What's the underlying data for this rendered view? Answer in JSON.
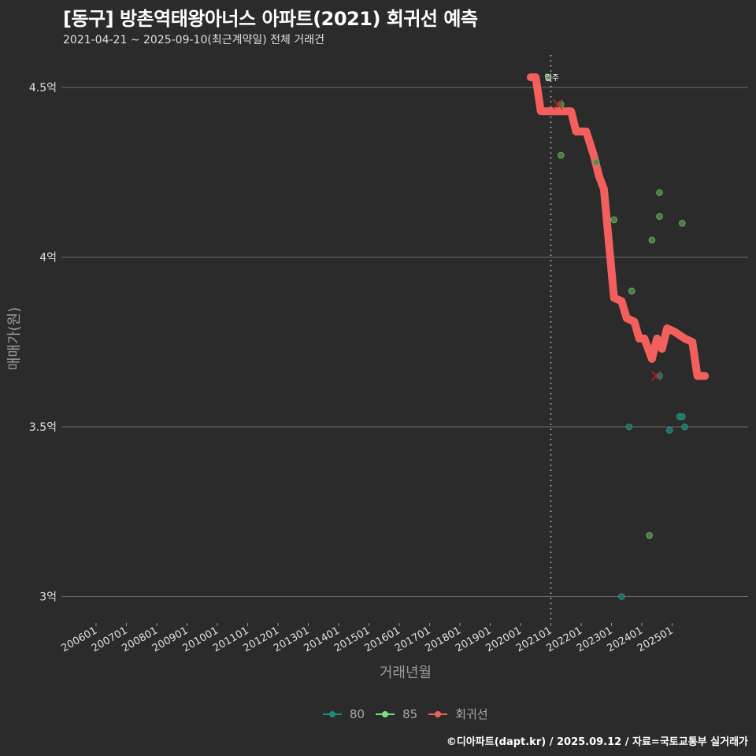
{
  "header": {
    "title": "[동구] 방촌역태왕아너스 아파트(2021) 회귀선 예측",
    "subtitle": "2021-04-21 ~ 2025-09-10(최근계약일) 전체 거래건"
  },
  "footer": {
    "credit": "©디아파트(dapt.kr) / 2025.09.12 / 자료=국토교통부 실거래가"
  },
  "colors": {
    "background": "#2b2b2b",
    "grid": "#6b6b6b",
    "series_80": "#1f7a6e",
    "series_85": "#6fbf5a",
    "regression": "#f25f5c",
    "marker_x": "#cc2222",
    "annotation_line": "#cccccc"
  },
  "legend": {
    "items": [
      {
        "label": "80",
        "color": "#1f8a7e"
      },
      {
        "label": "85",
        "color": "#7be07b"
      },
      {
        "label": "회귀선",
        "color": "#f25f5c"
      }
    ]
  },
  "chart_data": {
    "type": "scatter",
    "title": "[동구] 방촌역태왕아너스 아파트(2021) 회귀선 예측",
    "subtitle": "2021-04-21 ~ 2025-09-10(최근계약일) 전체 거래건",
    "xlabel": "거래년월",
    "ylabel": "매매가(원)",
    "x_ticks": [
      "200601",
      "200701",
      "200801",
      "200901",
      "201001",
      "201101",
      "201201",
      "201301",
      "201401",
      "201501",
      "201601",
      "201701",
      "201801",
      "201901",
      "202001",
      "202101",
      "202201",
      "202301",
      "202401",
      "202501"
    ],
    "y_ticks": [
      {
        "value": 3.0,
        "label": "3억"
      },
      {
        "value": 3.5,
        "label": "3.5억"
      },
      {
        "value": 4.0,
        "label": "4억"
      },
      {
        "value": 4.5,
        "label": "4.5억"
      }
    ],
    "ylim": [
      2.92,
      4.6
    ],
    "xlim": [
      "200510",
      "202612"
    ],
    "grid": "horizontal",
    "legend_position": "bottom",
    "annotation": {
      "label": "입주",
      "x": "202101",
      "style": "dotted-vertical"
    },
    "series": [
      {
        "name": "80",
        "type": "scatter",
        "points": [
          {
            "x": "2023-05",
            "y": 3.0
          },
          {
            "x": "2023-08",
            "y": 3.5
          },
          {
            "x": "2024-08",
            "y": 3.65
          },
          {
            "x": "2024-12",
            "y": 3.49
          },
          {
            "x": "2025-04",
            "y": 3.53
          },
          {
            "x": "2025-05",
            "y": 3.53
          },
          {
            "x": "2025-06",
            "y": 3.5
          }
        ]
      },
      {
        "name": "85",
        "type": "scatter",
        "points": [
          {
            "x": "2020-12",
            "y": 4.53
          },
          {
            "x": "2021-05",
            "y": 4.45
          },
          {
            "x": "2021-05",
            "y": 4.3
          },
          {
            "x": "2022-07",
            "y": 4.28
          },
          {
            "x": "2023-02",
            "y": 4.11
          },
          {
            "x": "2023-09",
            "y": 3.9
          },
          {
            "x": "2024-04",
            "y": 3.18
          },
          {
            "x": "2024-05",
            "y": 4.05
          },
          {
            "x": "2024-08",
            "y": 4.19
          },
          {
            "x": "2024-08",
            "y": 4.12
          },
          {
            "x": "2025-05",
            "y": 4.1
          }
        ]
      },
      {
        "name": "회귀선",
        "type": "line",
        "points": [
          {
            "x": "2020-05",
            "y": 4.53
          },
          {
            "x": "2020-07",
            "y": 4.53
          },
          {
            "x": "2020-09",
            "y": 4.43
          },
          {
            "x": "2021-09",
            "y": 4.43
          },
          {
            "x": "2021-11",
            "y": 4.37
          },
          {
            "x": "2022-03",
            "y": 4.37
          },
          {
            "x": "2022-06",
            "y": 4.3
          },
          {
            "x": "2022-08",
            "y": 4.24
          },
          {
            "x": "2022-10",
            "y": 4.2
          },
          {
            "x": "2023-02",
            "y": 3.88
          },
          {
            "x": "2023-05",
            "y": 3.87
          },
          {
            "x": "2023-07",
            "y": 3.82
          },
          {
            "x": "2023-10",
            "y": 3.81
          },
          {
            "x": "2023-12",
            "y": 3.76
          },
          {
            "x": "2024-02",
            "y": 3.76
          },
          {
            "x": "2024-05",
            "y": 3.7
          },
          {
            "x": "2024-07",
            "y": 3.76
          },
          {
            "x": "2024-09",
            "y": 3.73
          },
          {
            "x": "2024-11",
            "y": 3.79
          },
          {
            "x": "2025-02",
            "y": 3.78
          },
          {
            "x": "2025-04",
            "y": 3.77
          },
          {
            "x": "2025-06",
            "y": 3.76
          },
          {
            "x": "2025-09",
            "y": 3.75
          },
          {
            "x": "2025-11",
            "y": 3.65
          },
          {
            "x": "2026-02",
            "y": 3.65
          }
        ]
      }
    ],
    "excluded_markers": [
      {
        "x": "2021-05",
        "y": 4.45
      },
      {
        "x": "2024-08",
        "y": 3.65
      }
    ]
  }
}
